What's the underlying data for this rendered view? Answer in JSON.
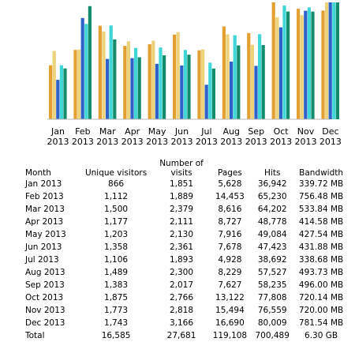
{
  "chart_data": {
    "type": "bar",
    "categories": [
      [
        "Jan",
        "2013"
      ],
      [
        "Feb",
        "2013"
      ],
      [
        "Mar",
        "2013"
      ],
      [
        "Apr",
        "2013"
      ],
      [
        "May",
        "2013"
      ],
      [
        "Jun",
        "2013"
      ],
      [
        "Jul",
        "2013"
      ],
      [
        "Aug",
        "2013"
      ],
      [
        "Sep",
        "2013"
      ],
      [
        "Oct",
        "2013"
      ],
      [
        "Nov",
        "2013"
      ],
      [
        "Dec",
        "2013"
      ]
    ],
    "series": [
      {
        "values": [
          866,
          1112,
          1500,
          1177,
          1203,
          1358,
          1106,
          1489,
          1383,
          1875,
          1773,
          1743
        ],
        "color": "#e3a031"
      },
      {
        "values": [
          1851,
          1889,
          2379,
          2111,
          2130,
          2361,
          1893,
          2300,
          2017,
          2766,
          2818,
          3166
        ],
        "color": "#ecd27a"
      },
      {
        "values": [
          5628,
          14453,
          8616,
          8727,
          7916,
          7678,
          4928,
          8229,
          7627,
          13122,
          15494,
          16690
        ],
        "color": "#2e62c8"
      },
      {
        "values": [
          36942,
          65230,
          64202,
          48778,
          49084,
          47423,
          38692,
          57527,
          58235,
          77808,
          76559,
          80009
        ],
        "color": "#3ed6d6"
      },
      {
        "values": [
          339.72,
          756.48,
          533.84,
          414.58,
          427.54,
          431.88,
          338.68,
          493.73,
          496.0,
          720.14,
          720.0,
          781.54
        ],
        "color": "#128c6c"
      }
    ]
  },
  "table": {
    "headers": {
      "month": "Month",
      "unique_visitors": "Unique visitors",
      "visits_line1": "Number of",
      "visits_line2": "visits",
      "pages": "Pages",
      "hits": "Hits",
      "bandwidth": "Bandwidth"
    },
    "rows": [
      [
        "Jan 2013",
        "866",
        "1,851",
        "5,628",
        "36,942",
        "339.72 MB"
      ],
      [
        "Feb 2013",
        "1,112",
        "1,889",
        "14,453",
        "65,230",
        "756.48 MB"
      ],
      [
        "Mar 2013",
        "1,500",
        "2,379",
        "8,616",
        "64,202",
        "533.84 MB"
      ],
      [
        "Apr 2013",
        "1,177",
        "2,111",
        "8,727",
        "48,778",
        "414.58 MB"
      ],
      [
        "May 2013",
        "1,203",
        "2,130",
        "7,916",
        "49,084",
        "427.54 MB"
      ],
      [
        "Jun 2013",
        "1,358",
        "2,361",
        "7,678",
        "47,423",
        "431.88 MB"
      ],
      [
        "Jul 2013",
        "1,106",
        "1,893",
        "4,928",
        "38,692",
        "338.68 MB"
      ],
      [
        "Aug 2013",
        "1,489",
        "2,300",
        "8,229",
        "57,527",
        "493.73 MB"
      ],
      [
        "Sep 2013",
        "1,383",
        "2,017",
        "7,627",
        "58,235",
        "496.00 MB"
      ],
      [
        "Oct 2013",
        "1,875",
        "2,766",
        "13,122",
        "77,808",
        "720.14 MB"
      ],
      [
        "Nov 2013",
        "1,773",
        "2,818",
        "15,494",
        "76,559",
        "720.00 MB"
      ],
      [
        "Dec 2013",
        "1,743",
        "3,166",
        "16,690",
        "80,009",
        "781.54 MB"
      ]
    ],
    "total": [
      "Total",
      "16,585",
      "27,681",
      "119,108",
      "700,489",
      "6.30 GB"
    ]
  }
}
